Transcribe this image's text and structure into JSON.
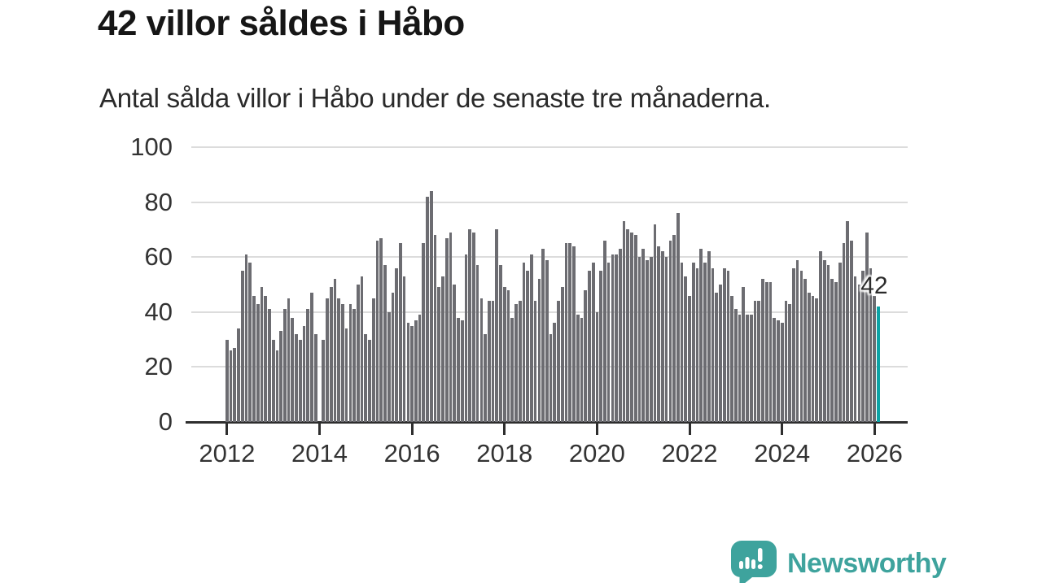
{
  "header": {
    "title": "42 villor såldes i Håbo",
    "subtitle": "Antal sålda villor i Håbo under de senaste tre månaderna."
  },
  "branding": {
    "name": "Newsworthy",
    "icon": "bar-chart-speech-bubble-icon",
    "color": "#3ea39d"
  },
  "colors": {
    "bar_gray": "#6c6c71",
    "highlight_teal": "#0ca3a6",
    "gridline": "#dcdcdc",
    "axis": "#2e2e2e",
    "text_dark": "#161616",
    "tick_text": "#333333"
  },
  "chart_data": {
    "type": "bar",
    "title": "42 villor såldes i Håbo",
    "subtitle": "Antal sålda villor i Håbo under de senaste tre månaderna.",
    "xlabel": "",
    "ylabel": "",
    "ylim": [
      0,
      100
    ],
    "y_ticks": [
      "0",
      "20",
      "40",
      "60",
      "80",
      "100"
    ],
    "x_tick_labels": [
      "2012",
      "2014",
      "2016",
      "2018",
      "2020",
      "2022",
      "2024",
      "2026"
    ],
    "months_per_bar": 1,
    "grid": true,
    "legend": false,
    "bar_color": "#6c6c71",
    "highlight_color": "#0ca3a6",
    "highlight_index": 169,
    "annotation": {
      "label": "42",
      "value": 42
    },
    "values": [
      30,
      26,
      27,
      34,
      55,
      61,
      58,
      46,
      43,
      49,
      46,
      41,
      30,
      26,
      33,
      41,
      45,
      38,
      32,
      30,
      35,
      41,
      47,
      32,
      0,
      30,
      45,
      49,
      52,
      45,
      43,
      34,
      43,
      41,
      50,
      53,
      32,
      30,
      45,
      66,
      67,
      57,
      40,
      47,
      56,
      65,
      53,
      36,
      35,
      37,
      39,
      65,
      82,
      84,
      68,
      49,
      53,
      67,
      69,
      50,
      38,
      37,
      61,
      70,
      69,
      57,
      45,
      32,
      44,
      44,
      70,
      57,
      49,
      48,
      38,
      43,
      44,
      58,
      55,
      61,
      44,
      52,
      63,
      59,
      32,
      36,
      44,
      49,
      65,
      65,
      64,
      39,
      38,
      48,
      55,
      58,
      40,
      55,
      66,
      58,
      61,
      61,
      63,
      73,
      70,
      69,
      68,
      60,
      63,
      59,
      60,
      72,
      64,
      62,
      60,
      66,
      68,
      76,
      58,
      53,
      46,
      58,
      56,
      63,
      58,
      62,
      56,
      47,
      50,
      56,
      55,
      46,
      41,
      39,
      49,
      39,
      39,
      44,
      44,
      52,
      51,
      51,
      38,
      37,
      36,
      44,
      43,
      56,
      59,
      55,
      52,
      47,
      46,
      45,
      62,
      59,
      57,
      52,
      51,
      58,
      65,
      73,
      66,
      53,
      50,
      55,
      69,
      56,
      46,
      42
    ]
  }
}
